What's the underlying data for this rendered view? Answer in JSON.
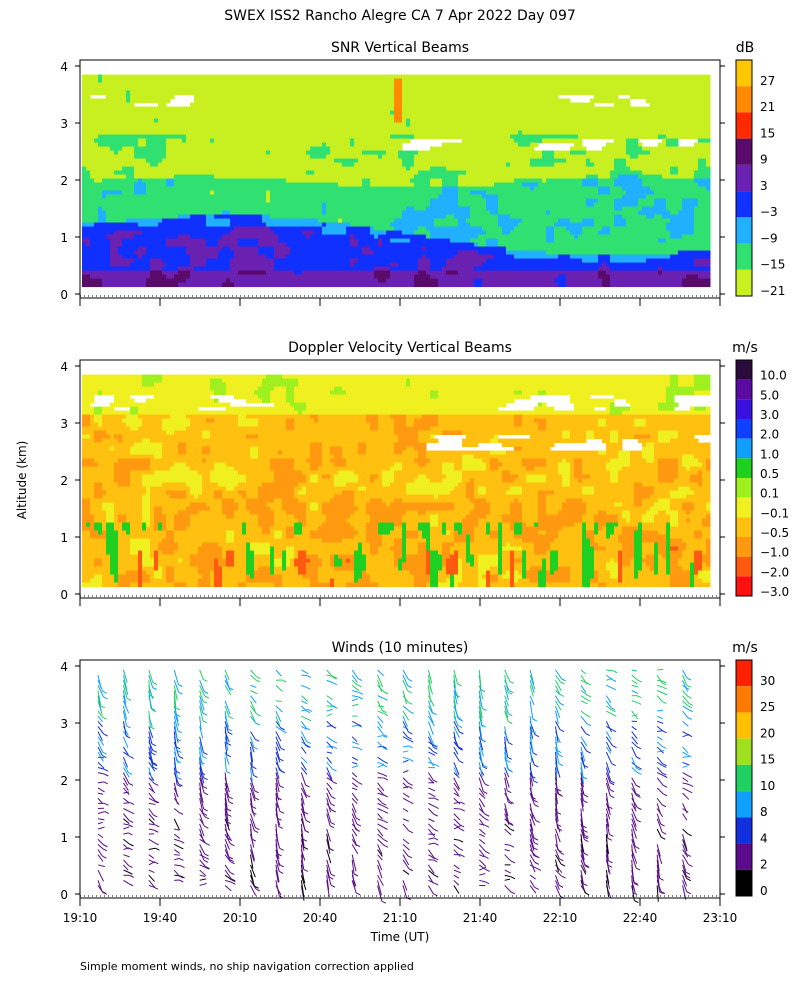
{
  "title": "SWEX ISS2 Rancho Alegre CA   7 Apr 2022 Day 097",
  "footer": "Simple moment winds, no ship navigation correction applied",
  "shared_axes": {
    "ylabel": "Altitude (km)",
    "xlabel": "Time (UT)",
    "x_ticks": [
      "19:10",
      "19:40",
      "20:10",
      "20:40",
      "21:10",
      "21:40",
      "22:10",
      "22:40",
      "23:10"
    ],
    "y_ticks": [
      "0",
      "1",
      "2",
      "3",
      "4"
    ]
  },
  "chart_data": [
    {
      "type": "heatmap",
      "title": "SNR Vertical Beams",
      "colorbar_unit": "dB",
      "colorbar_labels": [
        "27",
        "21",
        "15",
        "9",
        "3",
        "−3",
        "−9",
        "−15",
        "−21"
      ],
      "colorbar_colors": [
        "#ffc700",
        "#ff8a00",
        "#ff2a00",
        "#5a0a6a",
        "#6a20b0",
        "#1030ff",
        "#20b0ff",
        "#30e070",
        "#c8f020"
      ],
      "x_range": [
        "19:10",
        "23:10"
      ],
      "ylim": [
        0,
        4
      ],
      "value_range": [
        -24,
        30
      ]
    },
    {
      "type": "heatmap",
      "title": "Doppler Velocity Vertical Beams",
      "colorbar_unit": "m/s",
      "colorbar_labels": [
        "10.0",
        "5.0",
        "3.0",
        "2.0",
        "1.0",
        "0.5",
        "0.1",
        "−0.1",
        "−0.5",
        "−1.0",
        "−2.0",
        "−3.0"
      ],
      "colorbar_colors": [
        "#2a0a3a",
        "#5a0aa0",
        "#3a10e0",
        "#1040ff",
        "#10a0ff",
        "#20d020",
        "#a0f020",
        "#f0f020",
        "#ffc010",
        "#ff9a10",
        "#ff5a10",
        "#ff1010"
      ],
      "x_range": [
        "19:10",
        "23:10"
      ],
      "ylim": [
        0,
        4
      ],
      "value_range": [
        -3,
        10
      ]
    },
    {
      "type": "scatter",
      "title": "Winds (10 minutes)",
      "colorbar_unit": "m/s",
      "colorbar_labels": [
        "30",
        "25",
        "20",
        "15",
        "10",
        "8",
        "4",
        "2",
        "0"
      ],
      "colorbar_colors": [
        "#ff2000",
        "#ff7a00",
        "#ffc000",
        "#a0e020",
        "#20d060",
        "#10a0ff",
        "#1030e0",
        "#5a0a8a",
        "#000000"
      ],
      "x_range": [
        "19:10",
        "23:10"
      ],
      "ylim": [
        0,
        4
      ],
      "interval_minutes": 10
    }
  ]
}
